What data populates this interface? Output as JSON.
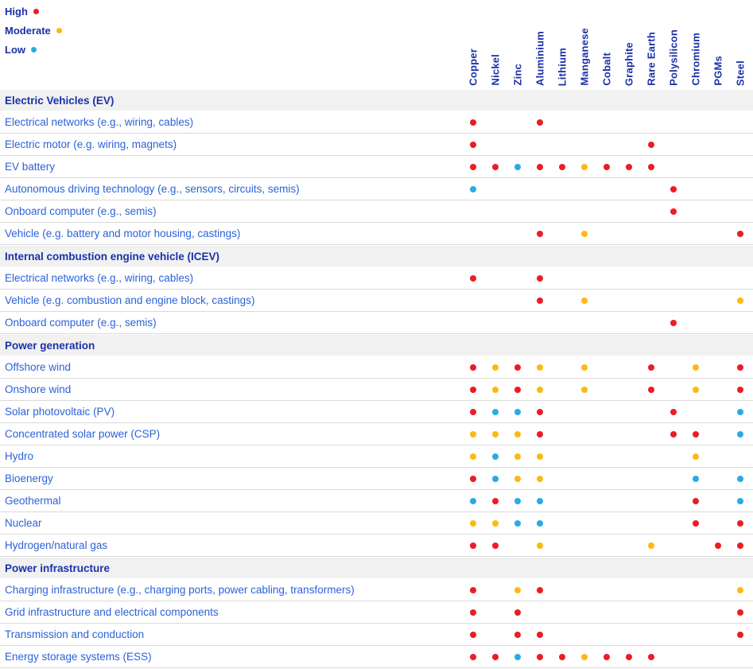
{
  "colors": {
    "high": "#ed1c24",
    "moderate": "#fdb913",
    "low": "#29abe2",
    "header_text": "#1b31a8",
    "row_text": "#2b62d9",
    "band_bg": "#f1f1f1",
    "divider": "#d9d9d9"
  },
  "legend": [
    {
      "label": "High",
      "level": "high"
    },
    {
      "label": "Moderate",
      "level": "moderate"
    },
    {
      "label": "Low",
      "level": "low"
    }
  ],
  "chart_data": {
    "type": "heatmap",
    "title": "",
    "legend_position": "top-left",
    "levels": [
      "high",
      "moderate",
      "low"
    ],
    "columns": [
      "Copper",
      "Nickel",
      "Zinc",
      "Aluminium",
      "Lithium",
      "Manganese",
      "Cobalt",
      "Graphite",
      "Rare Earth",
      "Polysilicon",
      "Chromium",
      "PGMs",
      "Steel"
    ],
    "sections": [
      {
        "title": "Electric Vehicles (EV)",
        "rows": [
          {
            "label": "Electrical networks (e.g., wiring, cables)",
            "cells": [
              "high",
              null,
              null,
              "high",
              null,
              null,
              null,
              null,
              null,
              null,
              null,
              null,
              null
            ]
          },
          {
            "label": "Electric motor (e.g. wiring, magnets)",
            "cells": [
              "high",
              null,
              null,
              null,
              null,
              null,
              null,
              null,
              "high",
              null,
              null,
              null,
              null
            ]
          },
          {
            "label": "EV battery",
            "cells": [
              "high",
              "high",
              "low",
              "high",
              "high",
              "moderate",
              "high",
              "high",
              "high",
              null,
              null,
              null,
              null
            ]
          },
          {
            "label": "Autonomous driving technology (e.g., sensors, circuits, semis)",
            "cells": [
              "low",
              null,
              null,
              null,
              null,
              null,
              null,
              null,
              null,
              "high",
              null,
              null,
              null
            ]
          },
          {
            "label": "Onboard computer (e.g., semis)",
            "cells": [
              null,
              null,
              null,
              null,
              null,
              null,
              null,
              null,
              null,
              "high",
              null,
              null,
              null
            ]
          },
          {
            "label": "Vehicle (e.g. battery and motor housing, castings)",
            "cells": [
              null,
              null,
              null,
              "high",
              null,
              "moderate",
              null,
              null,
              null,
              null,
              null,
              null,
              "high"
            ]
          }
        ]
      },
      {
        "title": "Internal combustion engine vehicle (ICEV)",
        "rows": [
          {
            "label": "Electrical networks (e.g., wiring, cables)",
            "cells": [
              "high",
              null,
              null,
              "high",
              null,
              null,
              null,
              null,
              null,
              null,
              null,
              null,
              null
            ]
          },
          {
            "label": "Vehicle (e.g. combustion and engine block, castings)",
            "cells": [
              null,
              null,
              null,
              "high",
              null,
              "moderate",
              null,
              null,
              null,
              null,
              null,
              null,
              "moderate"
            ]
          },
          {
            "label": "Onboard computer (e.g., semis)",
            "cells": [
              null,
              null,
              null,
              null,
              null,
              null,
              null,
              null,
              null,
              "high",
              null,
              null,
              null
            ]
          }
        ]
      },
      {
        "title": "Power generation",
        "rows": [
          {
            "label": "Offshore wind",
            "cells": [
              "high",
              "moderate",
              "high",
              "moderate",
              null,
              "moderate",
              null,
              null,
              "high",
              null,
              "moderate",
              null,
              "high"
            ]
          },
          {
            "label": "Onshore wind",
            "cells": [
              "high",
              "moderate",
              "high",
              "moderate",
              null,
              "moderate",
              null,
              null,
              "high",
              null,
              "moderate",
              null,
              "high"
            ]
          },
          {
            "label": "Solar photovoltaic (PV)",
            "cells": [
              "high",
              "low",
              "low",
              "high",
              null,
              null,
              null,
              null,
              null,
              "high",
              null,
              null,
              "low"
            ]
          },
          {
            "label": "Concentrated solar power (CSP)",
            "cells": [
              "moderate",
              "moderate",
              "moderate",
              "high",
              null,
              null,
              null,
              null,
              null,
              "high",
              "high",
              null,
              "low"
            ]
          },
          {
            "label": "Hydro",
            "cells": [
              "moderate",
              "low",
              "moderate",
              "moderate",
              null,
              null,
              null,
              null,
              null,
              null,
              "moderate",
              null,
              null
            ]
          },
          {
            "label": "Bioenergy",
            "cells": [
              "high",
              "low",
              "moderate",
              "moderate",
              null,
              null,
              null,
              null,
              null,
              null,
              "low",
              null,
              "low"
            ]
          },
          {
            "label": "Geothermal",
            "cells": [
              "low",
              "high",
              "low",
              "low",
              null,
              null,
              null,
              null,
              null,
              null,
              "high",
              null,
              "low"
            ]
          },
          {
            "label": "Nuclear",
            "cells": [
              "moderate",
              "moderate",
              "low",
              "low",
              null,
              null,
              null,
              null,
              null,
              null,
              "high",
              null,
              "high"
            ]
          },
          {
            "label": "Hydrogen/natural gas",
            "cells": [
              "high",
              "high",
              null,
              "moderate",
              null,
              null,
              null,
              null,
              "moderate",
              null,
              null,
              "high",
              "high"
            ]
          }
        ]
      },
      {
        "title": "Power infrastructure",
        "rows": [
          {
            "label": "Charging infrastructure (e.g., charging ports, power cabling, transformers)",
            "cells": [
              "high",
              null,
              "moderate",
              "high",
              null,
              null,
              null,
              null,
              null,
              null,
              null,
              null,
              "moderate"
            ]
          },
          {
            "label": "Grid infrastructure and electrical components",
            "cells": [
              "high",
              null,
              "high",
              null,
              null,
              null,
              null,
              null,
              null,
              null,
              null,
              null,
              "high"
            ]
          },
          {
            "label": "Transmission and conduction",
            "cells": [
              "high",
              null,
              "high",
              "high",
              null,
              null,
              null,
              null,
              null,
              null,
              null,
              null,
              "high"
            ]
          },
          {
            "label": "Energy storage systems (ESS)",
            "cells": [
              "high",
              "high",
              "low",
              "high",
              "high",
              "moderate",
              "high",
              "high",
              "high",
              null,
              null,
              null,
              null
            ]
          }
        ]
      }
    ]
  }
}
